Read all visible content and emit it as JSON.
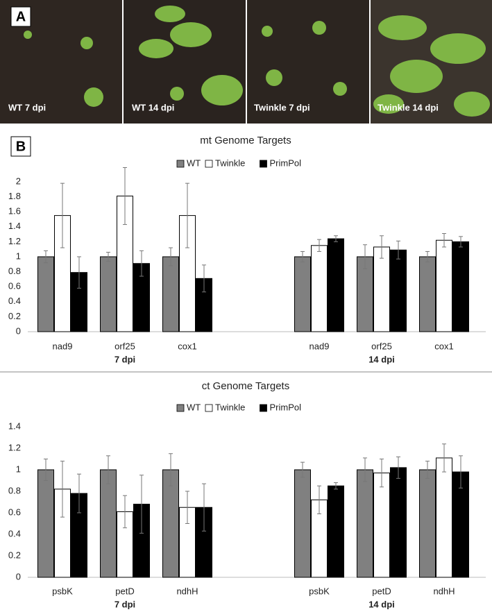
{
  "panels": {
    "a_label": "A",
    "b_label": "B",
    "photos": [
      "WT 7 dpi",
      "WT 14 dpi",
      "Twinkle 7 dpi",
      "Twinkle 14 dpi"
    ]
  },
  "chart_data": [
    {
      "type": "bar",
      "title": "mt Genome Targets",
      "categories": [
        "nad9",
        "orf25",
        "cox1",
        "nad9",
        "orf25",
        "cox1"
      ],
      "group_labels": [
        "7 dpi",
        "14 dpi"
      ],
      "series": [
        {
          "name": "WT",
          "color": "#808080",
          "values": [
            1,
            1,
            1,
            1,
            1,
            1
          ],
          "errors": [
            0.08,
            0.06,
            0.12,
            0.07,
            0.16,
            0.07
          ]
        },
        {
          "name": "Twinkle",
          "color": "#ffffff",
          "values": [
            1.55,
            1.81,
            1.55,
            1.15,
            1.13,
            1.22
          ],
          "errors": [
            0.43,
            0.38,
            0.43,
            0.08,
            0.15,
            0.09
          ]
        },
        {
          "name": "PrimPol",
          "color": "#000000",
          "values": [
            0.79,
            0.91,
            0.71,
            1.24,
            1.09,
            1.2
          ],
          "errors": [
            0.21,
            0.17,
            0.18,
            0.04,
            0.12,
            0.07
          ]
        }
      ],
      "ylim": [
        0,
        2
      ],
      "yticks": [
        0,
        0.2,
        0.4,
        0.6,
        0.8,
        1,
        1.2,
        1.4,
        1.6,
        1.8,
        2
      ],
      "legend": "top"
    },
    {
      "type": "bar",
      "title": "ct Genome Targets",
      "categories": [
        "psbK",
        "petD",
        "ndhH",
        "psbK",
        "petD",
        "ndhH"
      ],
      "group_labels": [
        "7 dpi",
        "14 dpi"
      ],
      "series": [
        {
          "name": "WT",
          "color": "#808080",
          "values": [
            1,
            1,
            1,
            1,
            1,
            1
          ],
          "errors": [
            0.1,
            0.13,
            0.15,
            0.07,
            0.11,
            0.08
          ]
        },
        {
          "name": "Twinkle",
          "color": "#ffffff",
          "values": [
            0.82,
            0.61,
            0.65,
            0.72,
            0.97,
            1.11
          ],
          "errors": [
            0.26,
            0.15,
            0.15,
            0.13,
            0.13,
            0.13
          ]
        },
        {
          "name": "PrimPol",
          "color": "#000000",
          "values": [
            0.78,
            0.68,
            0.65,
            0.85,
            1.02,
            0.98
          ],
          "errors": [
            0.18,
            0.27,
            0.22,
            0.03,
            0.1,
            0.15
          ]
        }
      ],
      "ylim": [
        0,
        1.4
      ],
      "yticks": [
        0,
        0.2,
        0.4,
        0.6,
        0.8,
        1,
        1.2,
        1.4
      ],
      "legend": "top"
    }
  ]
}
